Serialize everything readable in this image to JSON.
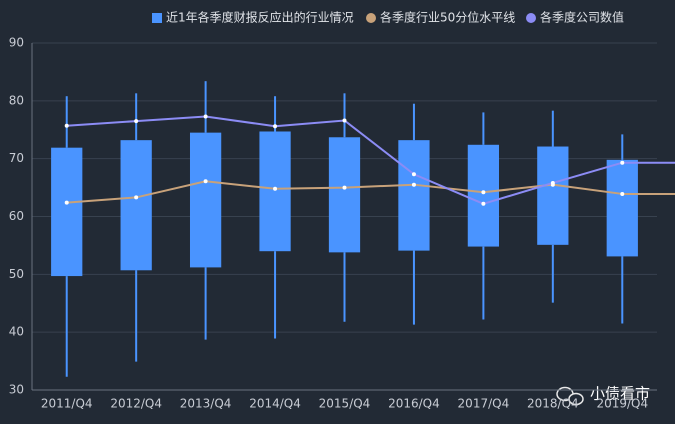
{
  "chart_data": {
    "type": "boxplot",
    "categories": [
      "2011/Q4",
      "2012/Q4",
      "2013/Q4",
      "2014/Q4",
      "2015/Q4",
      "2016/Q4",
      "2017/Q4",
      "2018/Q4",
      "2019/Q4"
    ],
    "series": [
      {
        "name": "近1年各季度财报反应出的行业情况",
        "color": "#4a94ff",
        "type": "boxplot",
        "values": [
          [
            32.3,
            49.7,
            71.9,
            80.8
          ],
          [
            34.9,
            50.7,
            73.2,
            81.3
          ],
          [
            38.7,
            51.2,
            74.5,
            83.4
          ],
          [
            38.9,
            54.0,
            74.7,
            80.8
          ],
          [
            41.8,
            53.8,
            73.7,
            81.3
          ],
          [
            41.3,
            54.1,
            73.2,
            79.5
          ],
          [
            42.2,
            54.8,
            72.4,
            78.0
          ],
          [
            45.1,
            55.1,
            72.1,
            78.3
          ],
          [
            41.5,
            53.1,
            69.8,
            74.2
          ]
        ]
      },
      {
        "name": "各季度行业50分位水平线",
        "color": "#c8a27a",
        "type": "line",
        "values": [
          62.4,
          63.3,
          66.1,
          64.8,
          65.0,
          65.5,
          64.2,
          65.5,
          63.9
        ]
      },
      {
        "name": "各季度公司数值",
        "color": "#8c8cf5",
        "type": "line",
        "values": [
          75.7,
          76.5,
          77.3,
          75.6,
          76.6,
          67.3,
          62.2,
          65.8,
          69.3
        ]
      }
    ],
    "ylim": [
      30,
      90
    ],
    "yticks": [
      30,
      40,
      50,
      60,
      70,
      80,
      90
    ],
    "grid": true,
    "watermark": "小债看市"
  }
}
